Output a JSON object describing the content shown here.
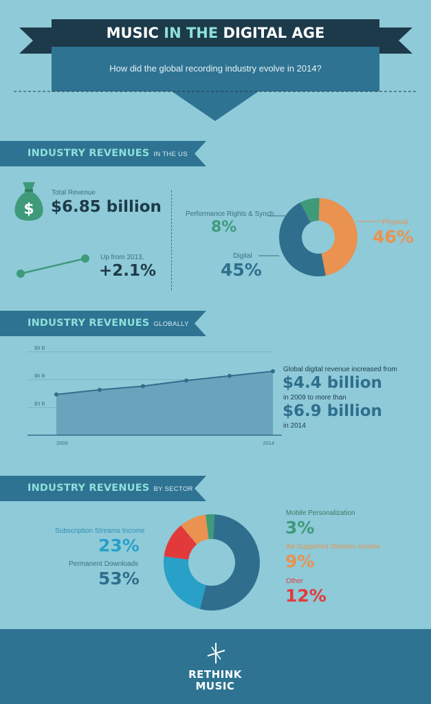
{
  "header": {
    "title_part1": "MUSIC",
    "title_part2": "IN THE",
    "title_part3": "DIGITAL AGE",
    "subtitle": "How did the global recording industry evolve in 2014?"
  },
  "us_section": {
    "title": "INDUSTRY REVENUES",
    "subtitle": "IN THE US",
    "total_label": "Total Revenue",
    "total_value": "$6.85 billion",
    "growth_label": "Up from 2013,",
    "growth_value": "+2.1%",
    "money_icon": "money-bag-icon",
    "donut": {
      "performance_label": "Performance Rights & Synch",
      "performance_value": "8%",
      "digital_label": "Digital",
      "digital_value": "45%",
      "physical_label": "Physical",
      "physical_value": "46%"
    }
  },
  "global_section": {
    "title": "INDUSTRY REVENUES",
    "subtitle": "GLOBALLY",
    "text_intro": "Global digital revenue increased from",
    "text_value1": "$4.4 billion",
    "text_mid": "in 2009 to more than",
    "text_value2": "$6.9 billion",
    "text_end": "in 2014"
  },
  "sector_section": {
    "title": "INDUSTRY REVENUES",
    "subtitle": "BY SECTOR",
    "subscription_label": "Subscription Streams Income",
    "subscription_value": "23%",
    "downloads_label": "Permanent Downloads",
    "downloads_value": "53%",
    "mobile_label": "Mobile Personalization",
    "mobile_value": "3%",
    "adsupported_label": "Ad-Supported Streams Income",
    "adsupported_value": "9%",
    "other_label": "Other",
    "other_value": "12%"
  },
  "footer": {
    "logo_line1": "RETHINK",
    "logo_line2": "MUSIC"
  },
  "colors": {
    "background": "#8ecad8",
    "dark_navy": "#1d3a4a",
    "teal_dark": "#2e7392",
    "accent_teal": "#8ee0da",
    "digital_blue": "#2f6f8d",
    "physical_orange": "#ea9250",
    "performance_green": "#3f9a7a",
    "subscription_blue": "#28a0c8",
    "other_red": "#e23a3a"
  },
  "chart_data": [
    {
      "type": "pie",
      "categories": [
        "Physical",
        "Digital",
        "Performance Rights & Synch"
      ],
      "values": [
        46,
        45,
        8
      ]
    },
    {
      "type": "area",
      "x": [
        2009,
        2010,
        2011,
        2012,
        2013,
        2014
      ],
      "x_tick_labels": [
        "2009",
        "2014"
      ],
      "y_tick_labels": [
        "$9 B",
        "$6 B",
        "$3 B"
      ],
      "yticks": [
        3,
        6,
        9
      ],
      "values": [
        4.4,
        4.9,
        5.3,
        5.9,
        6.4,
        6.9
      ],
      "ylim": [
        0,
        9.5
      ],
      "grid": true
    },
    {
      "type": "pie",
      "categories": [
        "Permanent Downloads",
        "Subscription Streams Income",
        "Other",
        "Ad-Supported Streams Income",
        "Mobile Personalization"
      ],
      "values": [
        53,
        23,
        12,
        9,
        3
      ]
    }
  ]
}
